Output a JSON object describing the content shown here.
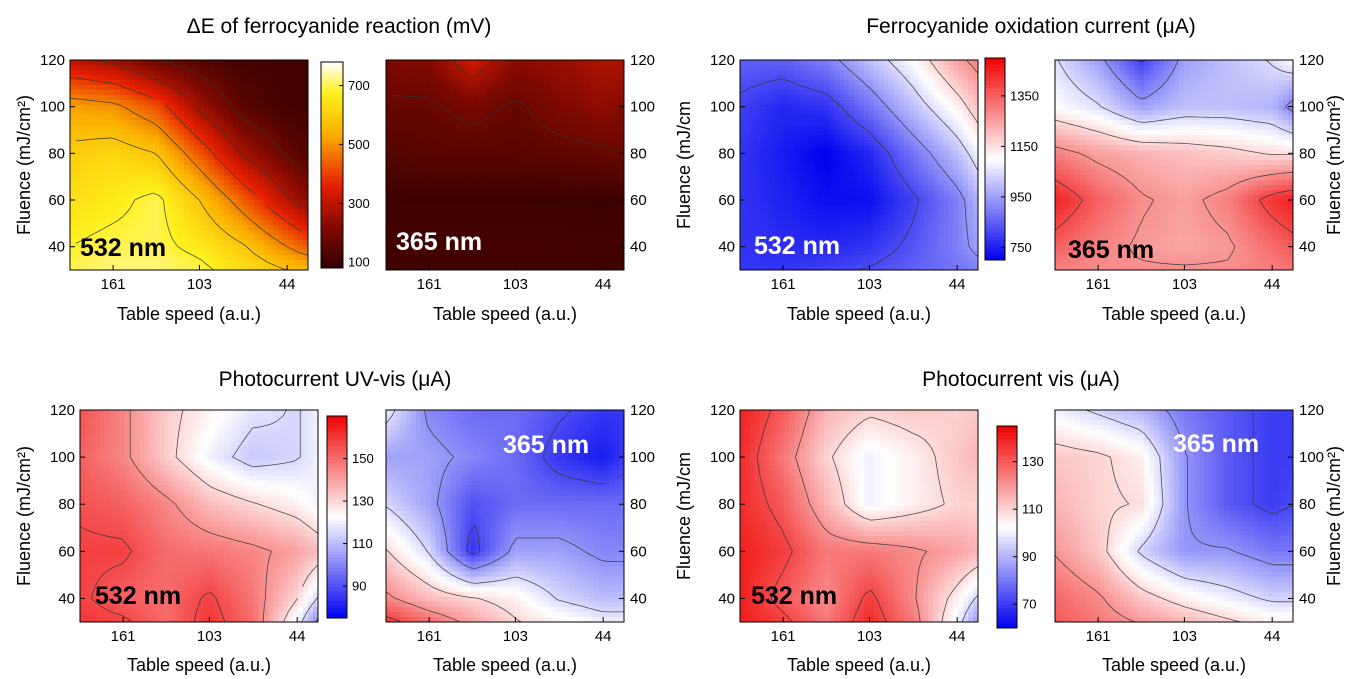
{
  "chart_data": [
    {
      "type": "heatmap",
      "title": "ΔE of ferrocyanide reaction (mV)",
      "colormap": "dark-red-to-yellow-to-white",
      "colorbar_ticks": [
        "100",
        "300",
        "500",
        "700"
      ],
      "colorbar_range": [
        80,
        780
      ],
      "panels": [
        {
          "label": "532 nm",
          "label_color": "#000000",
          "xlabel": "Table speed (a.u.)",
          "ylabel": "Fluence (mJ/cm²)",
          "yaxis_side": "left",
          "x_ticks": [
            "161",
            "103",
            "44"
          ],
          "y_ticks": [
            "40",
            "60",
            "80",
            "100",
            "120"
          ],
          "ylim": [
            30,
            120
          ],
          "x": [
            190,
            161,
            132,
            103,
            74,
            44,
            30
          ],
          "y": [
            30,
            40,
            60,
            80,
            100,
            120
          ],
          "z": [
            [
              700,
              720,
              720,
              700,
              640,
              580,
              560
            ],
            [
              680,
              700,
              700,
              660,
              590,
              480,
              430
            ],
            [
              640,
              660,
              700,
              580,
              440,
              290,
              230
            ],
            [
              600,
              620,
              580,
              430,
              270,
              170,
              130
            ],
            [
              520,
              500,
              420,
              260,
              150,
              110,
              110
            ],
            [
              300,
              260,
              180,
              140,
              110,
              110,
              110
            ]
          ]
        },
        {
          "label": "365 nm",
          "label_color": "#ffffff",
          "xlabel": "Table speed (a.u.)",
          "ylabel": "",
          "yaxis_side": "right",
          "x_ticks": [
            "161",
            "103",
            "44"
          ],
          "y_ticks": [
            "40",
            "60",
            "80",
            "100",
            "120"
          ],
          "ylim": [
            30,
            120
          ],
          "x": [
            190,
            161,
            132,
            103,
            74,
            44,
            30
          ],
          "y": [
            30,
            40,
            60,
            80,
            100,
            120
          ],
          "z": [
            [
              100,
              100,
              100,
              100,
              100,
              100,
              100
            ],
            [
              110,
              110,
              110,
              110,
              110,
              110,
              110
            ],
            [
              100,
              100,
              100,
              100,
              100,
              95,
              100
            ],
            [
              140,
              150,
              150,
              150,
              160,
              170,
              180
            ],
            [
              170,
              170,
              200,
              170,
              210,
              240,
              220
            ],
            [
              210,
              220,
              330,
              230,
              250,
              280,
              280
            ]
          ]
        }
      ]
    },
    {
      "type": "heatmap",
      "title": "Ferrocyanide oxidation current (μA)",
      "colormap": "blue-white-red",
      "colorbar_ticks": [
        "750",
        "950",
        "1150",
        "1350"
      ],
      "colorbar_range": [
        700,
        1500
      ],
      "panels": [
        {
          "label": "532 nm",
          "label_color": "#ffffff",
          "xlabel": "Table speed (a.u.)",
          "ylabel": "Fluence (mJ/cm",
          "yaxis_side": "left",
          "x_ticks": [
            "161",
            "103",
            "44"
          ],
          "y_ticks": [
            "40",
            "60",
            "80",
            "100",
            "120"
          ],
          "ylim": [
            30,
            120
          ],
          "x": [
            190,
            161,
            132,
            103,
            74,
            44,
            30
          ],
          "y": [
            30,
            40,
            60,
            80,
            100,
            120
          ],
          "z": [
            [
              780,
              780,
              800,
              820,
              850,
              880,
              900
            ],
            [
              780,
              770,
              760,
              780,
              830,
              900,
              950
            ],
            [
              780,
              750,
              720,
              720,
              800,
              900,
              980
            ],
            [
              780,
              740,
              700,
              760,
              880,
              1000,
              1080
            ],
            [
              800,
              760,
              780,
              880,
              1000,
              1120,
              1200
            ],
            [
              850,
              850,
              900,
              1000,
              1100,
              1250,
              1300
            ]
          ]
        },
        {
          "label": "365 nm",
          "label_color": "#000000",
          "xlabel": "Table speed (a.u.)",
          "ylabel": "Fluence (mJ/cm²)",
          "yaxis_side": "right",
          "x_ticks": [
            "161",
            "103",
            "44"
          ],
          "y_ticks": [
            "40",
            "60",
            "80",
            "100",
            "120"
          ],
          "ylim": [
            30,
            120
          ],
          "x": [
            190,
            161,
            132,
            103,
            74,
            44,
            30
          ],
          "y": [
            30,
            40,
            60,
            80,
            100,
            120
          ],
          "z": [
            [
              1300,
              1280,
              1280,
              1280,
              1280,
              1300,
              1320
            ],
            [
              1350,
              1300,
              1260,
              1240,
              1260,
              1330,
              1360
            ],
            [
              1450,
              1350,
              1280,
              1250,
              1300,
              1420,
              1450
            ],
            [
              1300,
              1250,
              1220,
              1200,
              1180,
              1150,
              1150
            ],
            [
              1100,
              1050,
              950,
              1000,
              1000,
              980,
              900
            ],
            [
              1050,
              950,
              800,
              950,
              1000,
              1050,
              1100
            ]
          ]
        }
      ]
    },
    {
      "type": "heatmap",
      "title": "Photocurrent UV-vis (μA)",
      "colormap": "blue-white-red",
      "colorbar_ticks": [
        "90",
        "110",
        "130",
        "150"
      ],
      "colorbar_range": [
        75,
        170
      ],
      "panels": [
        {
          "label": "532 nm",
          "label_color": "#000000",
          "xlabel": "Table speed (a.u.)",
          "ylabel": "Fluence (mJ/cm²)",
          "yaxis_side": "left",
          "x_ticks": [
            "161",
            "103",
            "44"
          ],
          "y_ticks": [
            "40",
            "60",
            "80",
            "100",
            "120"
          ],
          "ylim": [
            30,
            120
          ],
          "x": [
            190,
            161,
            132,
            103,
            74,
            44,
            30
          ],
          "y": [
            30,
            40,
            60,
            80,
            100,
            120
          ],
          "z": [
            [
              160,
              158,
              150,
              160,
              150,
              120,
              100
            ],
            [
              158,
              152,
              150,
              158,
              148,
              130,
              115
            ],
            [
              158,
              158,
              150,
              148,
              145,
              140,
              135
            ],
            [
              155,
              152,
              145,
              135,
              130,
              125,
              120
            ],
            [
              152,
              145,
              132,
              120,
              112,
              115,
              120
            ],
            [
              155,
              145,
              132,
              125,
              118,
              115,
              120
            ]
          ]
        },
        {
          "label": "365 nm",
          "label_color": "#ffffff",
          "xlabel": "Table speed (a.u.)",
          "ylabel": "",
          "yaxis_side": "right",
          "x_ticks": [
            "161",
            "103",
            "44"
          ],
          "y_ticks": [
            "40",
            "60",
            "80",
            "100",
            "120"
          ],
          "ylim": [
            30,
            120
          ],
          "x": [
            190,
            161,
            132,
            103,
            74,
            44,
            30
          ],
          "y": [
            30,
            40,
            60,
            80,
            100,
            120
          ],
          "z": [
            [
              160,
              150,
              140,
              130,
              125,
              120,
              120
            ],
            [
              145,
              135,
              130,
              125,
              115,
              110,
              110
            ],
            [
              130,
              115,
              85,
              105,
              105,
              100,
              100
            ],
            [
              115,
              105,
              90,
              95,
              95,
              95,
              95
            ],
            [
              105,
              105,
              100,
              95,
              85,
              80,
              85
            ],
            [
              120,
              100,
              95,
              95,
              90,
              85,
              85
            ]
          ]
        }
      ]
    },
    {
      "type": "heatmap",
      "title": "Photocurrent vis (μA)",
      "colormap": "blue-white-red",
      "colorbar_ticks": [
        "70",
        "90",
        "110",
        "130"
      ],
      "colorbar_range": [
        60,
        145
      ],
      "panels": [
        {
          "label": "532 nm",
          "label_color": "#000000",
          "xlabel": "Table speed (a.u.)",
          "ylabel": "Fluence (mJ/cm",
          "yaxis_side": "left",
          "x_ticks": [
            "161",
            "103",
            "44"
          ],
          "y_ticks": [
            "40",
            "60",
            "80",
            "100",
            "120"
          ],
          "ylim": [
            30,
            120
          ],
          "x": [
            190,
            161,
            132,
            103,
            74,
            44,
            30
          ],
          "y": [
            30,
            40,
            60,
            80,
            100,
            120
          ],
          "z": [
            [
              140,
              135,
              125,
              138,
              125,
              100,
              85
            ],
            [
              140,
              130,
              122,
              135,
              122,
              105,
              95
            ],
            [
              140,
              135,
              125,
              125,
              122,
              118,
              115
            ],
            [
              138,
              130,
              115,
              100,
              105,
              110,
              110
            ],
            [
              138,
              125,
              110,
              100,
              105,
              112,
              115
            ],
            [
              140,
              130,
              115,
              110,
              112,
              110,
              112
            ]
          ]
        },
        {
          "label": "365 nm",
          "label_color": "#ffffff",
          "xlabel": "Table speed (a.u.)",
          "ylabel": "Fluence (mJ/cm²)",
          "yaxis_side": "right",
          "x_ticks": [
            "161",
            "103",
            "44"
          ],
          "y_ticks": [
            "40",
            "60",
            "80",
            "100",
            "120"
          ],
          "ylim": [
            30,
            120
          ],
          "x": [
            190,
            161,
            132,
            103,
            74,
            44,
            30
          ],
          "y": [
            30,
            40,
            60,
            80,
            100,
            120
          ],
          "z": [
            [
              130,
              125,
              120,
              115,
              110,
              105,
              105
            ],
            [
              128,
              122,
              112,
              105,
              100,
              95,
              95
            ],
            [
              120,
              112,
              95,
              85,
              85,
              80,
              80
            ],
            [
              115,
              110,
              108,
              85,
              75,
              70,
              72
            ],
            [
              112,
              110,
              105,
              85,
              75,
              70,
              70
            ],
            [
              100,
              95,
              90,
              80,
              75,
              70,
              70
            ]
          ]
        }
      ]
    }
  ]
}
